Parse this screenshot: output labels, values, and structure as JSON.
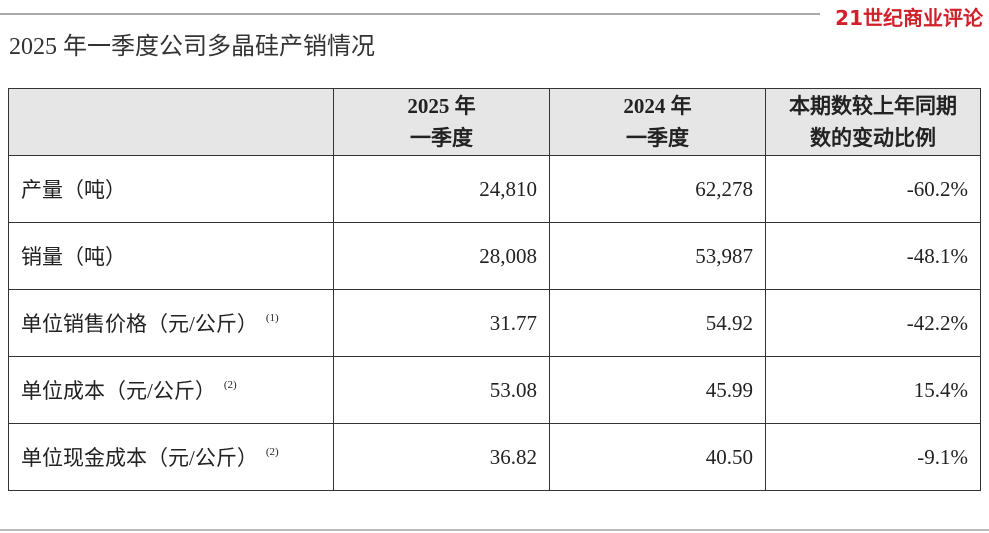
{
  "brand": "21世纪商业评论",
  "title": "2025 年一季度公司多晶硅产销情况",
  "table": {
    "header": [
      {
        "lines": [
          "2025 年",
          "一季度"
        ]
      },
      {
        "lines": [
          "2024 年",
          "一季度"
        ]
      },
      {
        "lines": [
          "本期数较上年同期",
          "数的变动比例"
        ]
      }
    ],
    "rows": [
      {
        "label": "产量（吨）",
        "cells": [
          "24,810",
          "62,278",
          "-60.2%"
        ]
      },
      {
        "label": "销量（吨）",
        "cells": [
          "28,008",
          "53,987",
          "-48.1%"
        ]
      },
      {
        "label": "单位销售价格（元/公斤）",
        "note": "(1)",
        "cells": [
          "31.77",
          "54.92",
          "-42.2%"
        ]
      },
      {
        "label": "单位成本（元/公斤）",
        "note": "(2)",
        "cells": [
          "53.08",
          "45.99",
          "15.4%"
        ]
      },
      {
        "label": "单位现金成本（元/公斤）",
        "note": "(2)",
        "cells": [
          "36.82",
          "40.50",
          "-9.1%"
        ]
      }
    ]
  }
}
